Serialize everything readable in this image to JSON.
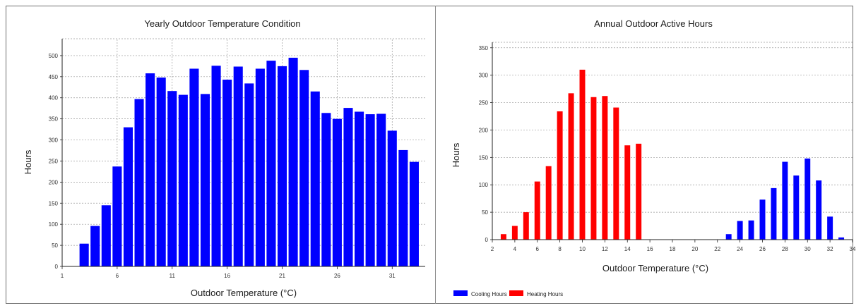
{
  "chart_data": [
    {
      "type": "bar",
      "title": "Yearly Outdoor Temperature Condition",
      "xlabel": "Outdoor Temperature (°C)",
      "ylabel": "Hours",
      "xlim": [
        1,
        34
      ],
      "ylim": [
        0,
        540
      ],
      "xticks": [
        1,
        6,
        11,
        16,
        21,
        26,
        31
      ],
      "yticks": [
        0,
        50,
        100,
        150,
        200,
        250,
        300,
        350,
        400,
        450,
        500
      ],
      "grid": true,
      "colors": {
        "bar": "#0000ff"
      },
      "x": [
        3,
        4,
        5,
        6,
        7,
        8,
        9,
        10,
        11,
        12,
        13,
        14,
        15,
        16,
        17,
        18,
        19,
        20,
        21,
        22,
        23,
        24,
        25,
        26,
        27,
        28,
        29,
        30,
        31,
        32,
        33
      ],
      "values": [
        54,
        96,
        145,
        237,
        330,
        397,
        458,
        448,
        416,
        407,
        469,
        409,
        476,
        443,
        474,
        434,
        469,
        488,
        475,
        495,
        466,
        415,
        364,
        350,
        376,
        367,
        361,
        362,
        322,
        276,
        248
      ]
    },
    {
      "type": "bar",
      "title": "Annual Outdoor Active Hours",
      "xlabel": "Outdoor Temperature (°C)",
      "ylabel": "Hours",
      "xlim": [
        2,
        34
      ],
      "ylim": [
        0,
        360
      ],
      "xticks": [
        2,
        4,
        6,
        8,
        10,
        12,
        14,
        16,
        18,
        20,
        22,
        24,
        26,
        28,
        30,
        32,
        34
      ],
      "yticks": [
        0,
        50,
        100,
        150,
        200,
        250,
        300,
        350
      ],
      "grid": true,
      "legend": "bottom-left",
      "series": [
        {
          "name": "Cooling Hours",
          "color": "#0000ff",
          "x": [
            23,
            24,
            25,
            26,
            27,
            28,
            29,
            30,
            31,
            32,
            33
          ],
          "values": [
            10,
            34,
            35,
            73,
            94,
            142,
            117,
            148,
            108,
            42,
            4
          ]
        },
        {
          "name": "Heating Hours",
          "color": "#ff0000",
          "x": [
            3,
            4,
            5,
            6,
            7,
            8,
            9,
            10,
            11,
            12,
            13,
            14,
            15
          ],
          "values": [
            10,
            25,
            50,
            106,
            134,
            234,
            267,
            310,
            260,
            262,
            241,
            172,
            175
          ]
        }
      ]
    }
  ]
}
